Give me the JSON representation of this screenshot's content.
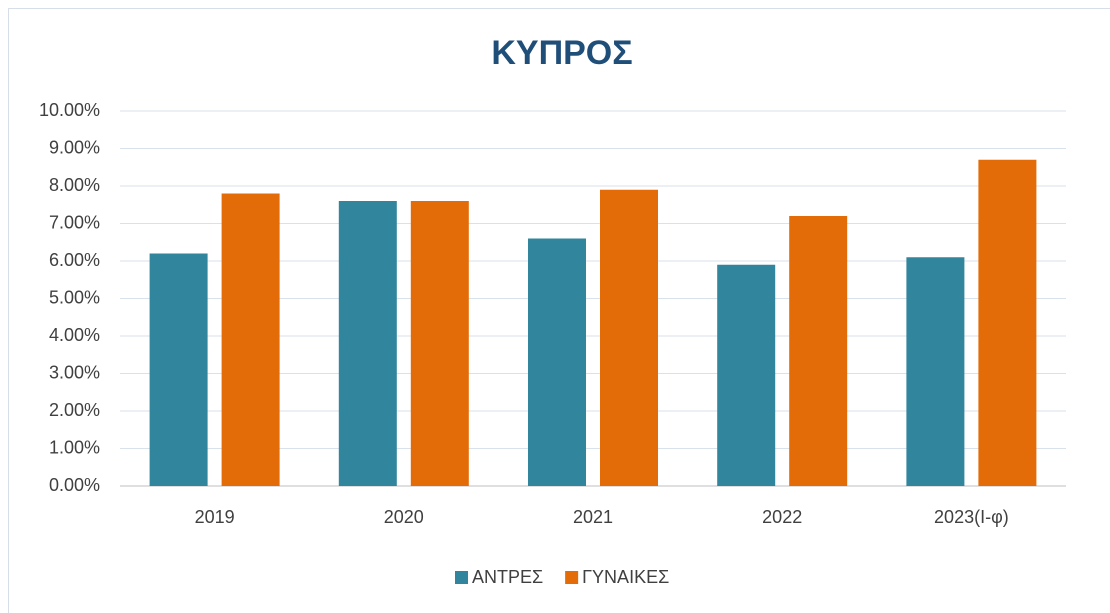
{
  "chart_data": {
    "type": "bar",
    "title": "ΚΥΠΡΟΣ",
    "categories": [
      "2019",
      "2020",
      "2021",
      "2022",
      "2023(Ι-φ)"
    ],
    "series": [
      {
        "name": "ΑΝΤΡΕΣ",
        "color": "#31859c",
        "values": [
          6.2,
          7.6,
          6.6,
          5.9,
          6.1
        ]
      },
      {
        "name": "ΓΥΝΑΙΚΕΣ",
        "color": "#e36c09",
        "values": [
          7.8,
          7.6,
          7.9,
          7.2,
          8.7
        ]
      }
    ],
    "ylim": [
      0,
      10
    ],
    "yticks": [
      {
        "value": 0,
        "label": "0.00%"
      },
      {
        "value": 1,
        "label": "1.00%"
      },
      {
        "value": 2,
        "label": "2.00%"
      },
      {
        "value": 3,
        "label": "3.00%"
      },
      {
        "value": 4,
        "label": "4.00%"
      },
      {
        "value": 5,
        "label": "5.00%"
      },
      {
        "value": 6,
        "label": "6.00%"
      },
      {
        "value": 7,
        "label": "7.00%"
      },
      {
        "value": 8,
        "label": "8.00%"
      },
      {
        "value": 9,
        "label": "9.00%"
      },
      {
        "value": 10,
        "label": "10.00%"
      }
    ],
    "grid": true,
    "legend": "bottom"
  }
}
